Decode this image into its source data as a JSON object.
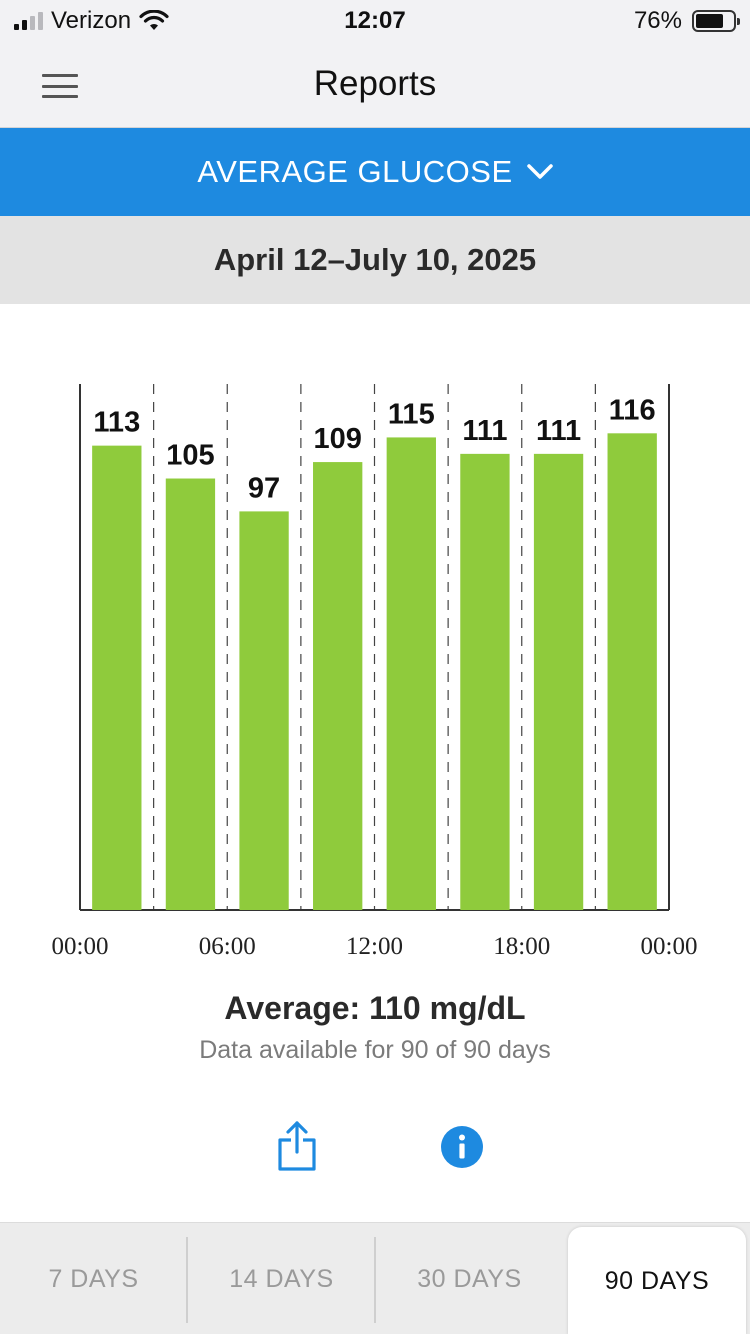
{
  "status_bar": {
    "carrier": "Verizon",
    "time": "12:07",
    "battery": "76%",
    "battery_level": 0.76
  },
  "nav": {
    "title": "Reports"
  },
  "report_selector": {
    "label": "AVERAGE GLUCOSE"
  },
  "date_range": "April 12–July 10, 2025",
  "chart_data": {
    "type": "bar",
    "x_tick_labels": [
      "00:00",
      "06:00",
      "12:00",
      "18:00",
      "00:00"
    ],
    "values": [
      113,
      105,
      97,
      109,
      115,
      111,
      111,
      116
    ],
    "ylim": [
      0,
      128
    ],
    "bar_color": "#8fcb3c",
    "grid": "vertical dashed lines between 3-hour periods"
  },
  "summary": {
    "average": "Average: 110 mg/dL",
    "availability": "Data available for 90 of 90 days"
  },
  "actions": {
    "share_icon": "share-icon",
    "info_icon": "info-icon"
  },
  "range_tabs": [
    {
      "label": "7 DAYS",
      "active": false
    },
    {
      "label": "14 DAYS",
      "active": false
    },
    {
      "label": "30 DAYS",
      "active": false
    },
    {
      "label": "90 DAYS",
      "active": true
    }
  ],
  "colors": {
    "accent_blue": "#1e8ae0",
    "bar_green": "#8fcb3c"
  }
}
